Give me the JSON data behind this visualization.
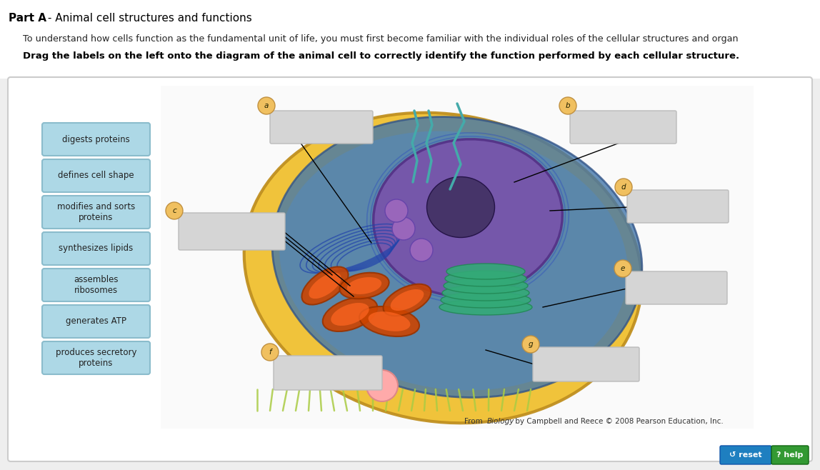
{
  "title_part": "Part A",
  "title_dash": " - Animal cell structures and functions",
  "subtitle": "To understand how cells function as the fundamental unit of life, you must first become familiar with the individual roles of the cellular structures and organ",
  "instruction": "Drag the labels on the left onto the diagram of the animal cell to correctly identify the function performed by each cellular structure.",
  "label_buttons": [
    "digests proteins",
    "defines cell shape",
    "modifies and sorts\nproteins",
    "synthesizes lipids",
    "assembles\nribosomes",
    "generates ATP",
    "produces secretory\nproteins"
  ],
  "button_bg": "#ADD8E6",
  "button_border": "#8BBCCC",
  "fig_width": 11.48,
  "fig_height": 6.58,
  "dpi": 100,
  "citation_rest": " by Campbell and Reece © 2008 Pearson Education, Inc.",
  "reset_btn_bg": "#1E7FC0",
  "help_btn_bg": "#339933",
  "outer_bg": "#EEEEEE",
  "panel_bg": "#FFFFFF",
  "answer_box_color": "#D0D0D0",
  "letter_bg": "#F0C060",
  "cell_outer": "#F5C030",
  "cell_inner": "#5588BB",
  "nucleus_color": "#7755AA",
  "nucleolus_color": "#443366",
  "golgi_color": "#44AA88",
  "mito_color": "#CC4400",
  "cilia_color": "#44AAAA"
}
